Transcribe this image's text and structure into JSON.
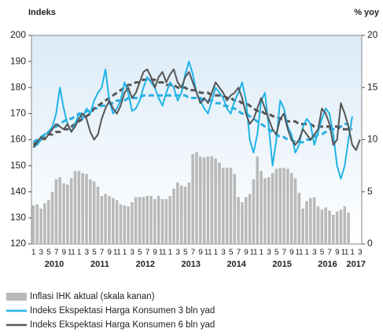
{
  "chart_data": {
    "type": "bar-line",
    "y_label": "Indeks",
    "y2_label": "% yoy",
    "categories": [
      "1",
      null,
      "3",
      null,
      "5",
      null,
      "7",
      null,
      "9",
      null,
      "11",
      null,
      "1",
      null,
      "3",
      null,
      "5",
      null,
      "7",
      null,
      "9",
      null,
      "11",
      null,
      "1",
      null,
      "3",
      null,
      "5",
      null,
      "7",
      null,
      "9",
      null,
      "11",
      null,
      "1",
      null,
      "3",
      null,
      "5",
      null,
      "7",
      null,
      "9",
      null,
      "11",
      null,
      "1",
      null,
      "3",
      null,
      "5",
      null,
      "7",
      null,
      "9",
      null,
      "11",
      null,
      "1",
      null,
      "3",
      null,
      "5",
      null,
      "7",
      null,
      "9",
      null,
      "11",
      null,
      "1",
      null,
      "3",
      null,
      "5",
      null,
      "7",
      null,
      "9",
      null,
      "11",
      null,
      "1",
      null,
      "3"
    ],
    "years": [
      "2010",
      "2011",
      "2012",
      "2013",
      "2014",
      "2015",
      "2016",
      "2017"
    ],
    "ylim": [
      120,
      200
    ],
    "yticks": [
      120,
      130,
      140,
      150,
      160,
      170,
      180,
      190,
      200
    ],
    "y2lim": [
      0,
      20
    ],
    "y2ticks": [
      0,
      5,
      10,
      15,
      20
    ],
    "series": [
      {
        "name": "Inflasi IHK aktual (skala kanan)",
        "kind": "bar",
        "axis": "y2",
        "color": "#b9b9b9",
        "values": [
          3.7,
          3.8,
          3.4,
          3.9,
          4.2,
          5.0,
          6.2,
          6.4,
          5.8,
          5.7,
          6.3,
          7.0,
          7.0,
          6.8,
          6.7,
          6.2,
          6.0,
          5.5,
          4.6,
          4.8,
          4.6,
          4.4,
          4.2,
          3.8,
          3.7,
          3.6,
          4.0,
          4.5,
          4.5,
          4.5,
          4.6,
          4.6,
          4.3,
          4.6,
          4.3,
          4.3,
          4.6,
          5.3,
          5.9,
          5.6,
          5.5,
          5.9,
          8.6,
          8.8,
          8.4,
          8.3,
          8.4,
          8.4,
          8.2,
          7.8,
          7.3,
          7.3,
          7.3,
          6.7,
          4.5,
          4.0,
          4.5,
          4.8,
          6.2,
          8.4,
          7.0,
          6.3,
          6.4,
          6.8,
          7.2,
          7.3,
          7.3,
          7.2,
          6.8,
          6.3,
          4.9,
          3.4,
          4.1,
          4.4,
          4.5,
          3.6,
          3.3,
          3.5,
          3.2,
          2.8,
          3.1,
          3.3,
          3.6,
          3.0,
          null,
          null,
          null
        ]
      },
      {
        "name": "Indeks Ekspektasi Harga Konsumen 3 bln yad",
        "kind": "line",
        "color": "#1fb4e6",
        "values": [
          157,
          158,
          160,
          162,
          163,
          165,
          170,
          180,
          172,
          166,
          163,
          166,
          170,
          168,
          172,
          170,
          175,
          178,
          180,
          187,
          175,
          170,
          172,
          175,
          182,
          178,
          171,
          172,
          175,
          180,
          184,
          182,
          180,
          176,
          173,
          178,
          182,
          180,
          175,
          178,
          185,
          190,
          185,
          178,
          175,
          172,
          170,
          175,
          180,
          178,
          176,
          172,
          170,
          175,
          178,
          182,
          175,
          160,
          155,
          162,
          175,
          178,
          165,
          150,
          160,
          175,
          172,
          165,
          162,
          155,
          158,
          165,
          168,
          166,
          158,
          163,
          168,
          172,
          170,
          162,
          150,
          145,
          150,
          160,
          169,
          null,
          null
        ]
      },
      {
        "name": "Indeks Ekspektasi Harga Konsumen 6 bln yad",
        "kind": "line",
        "color": "#555555",
        "values": [
          157,
          159,
          161,
          160,
          162,
          164,
          166,
          165,
          164,
          166,
          163,
          165,
          168,
          170,
          168,
          163,
          160,
          162,
          168,
          172,
          175,
          172,
          170,
          173,
          178,
          180,
          176,
          178,
          182,
          186,
          187,
          184,
          180,
          184,
          186,
          182,
          185,
          187,
          182,
          180,
          184,
          186,
          182,
          178,
          174,
          176,
          174,
          178,
          182,
          180,
          178,
          175,
          177,
          178,
          180,
          176,
          170,
          166,
          168,
          172,
          176,
          172,
          168,
          164,
          162,
          168,
          170,
          164,
          160,
          158,
          160,
          164,
          162,
          160,
          162,
          164,
          172,
          170,
          166,
          158,
          160,
          174,
          170,
          165,
          158,
          156,
          160
        ]
      },
      {
        "kind": "trend",
        "color": "#2eaee3",
        "values": [
          159,
          160,
          161,
          162,
          163,
          164,
          165,
          166,
          167,
          168,
          168,
          169,
          170,
          170,
          171,
          171,
          172,
          172,
          173,
          173,
          174,
          174,
          175,
          175,
          175,
          176,
          176,
          176,
          176,
          177,
          177,
          177,
          177,
          177,
          177,
          177,
          177,
          177,
          177,
          177,
          177,
          176,
          176,
          176,
          176,
          175,
          175,
          175,
          174,
          174,
          173,
          173,
          172,
          172,
          171,
          170,
          170,
          169,
          168,
          167,
          166,
          165,
          164,
          163,
          162,
          161,
          161,
          160,
          160,
          159,
          159,
          159,
          160,
          160,
          161,
          162,
          162,
          163,
          164,
          164,
          165,
          165,
          166,
          166,
          null,
          null,
          null
        ]
      },
      {
        "kind": "trend",
        "color": "#555555",
        "values": [
          158,
          159,
          160,
          161,
          162,
          162,
          163,
          163,
          164,
          164,
          165,
          166,
          167,
          168,
          169,
          170,
          172,
          173,
          174,
          175,
          176,
          177,
          178,
          179,
          180,
          181,
          181,
          182,
          182,
          183,
          183,
          183,
          183,
          182,
          182,
          181,
          181,
          181,
          180,
          180,
          180,
          179,
          179,
          179,
          178,
          178,
          178,
          177,
          177,
          177,
          177,
          176,
          176,
          175,
          175,
          174,
          174,
          173,
          172,
          171,
          171,
          170,
          170,
          169,
          169,
          168,
          168,
          167,
          167,
          167,
          166,
          166,
          166,
          166,
          165,
          165,
          165,
          165,
          165,
          165,
          165,
          164,
          164,
          164,
          164,
          null,
          null
        ]
      }
    ]
  }
}
